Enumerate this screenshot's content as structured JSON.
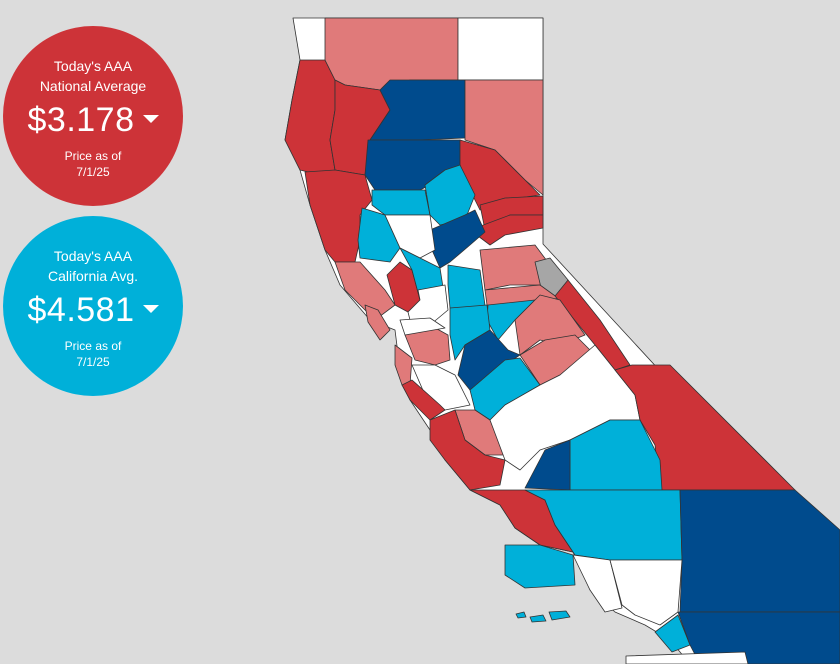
{
  "colors": {
    "background": "#dcdcdc",
    "high": "#cd3338",
    "upper_mid": "#e07a7a",
    "mid": "#ffffff",
    "lower_mid": "#00b0d9",
    "low": "#004b8d",
    "no_data": "#a6a6a6"
  },
  "national": {
    "line1": "Today's AAA",
    "line2": "National Average",
    "price": "$3.178",
    "asof_line1": "Price as of",
    "asof_line2": "7/1/25",
    "color": "#cd3338"
  },
  "california": {
    "line1": "Today's AAA",
    "line2": "California Avg.",
    "price": "$4.581",
    "asof_line1": "Price as of",
    "asof_line2": "7/1/25",
    "color": "#00b0d9"
  }
}
